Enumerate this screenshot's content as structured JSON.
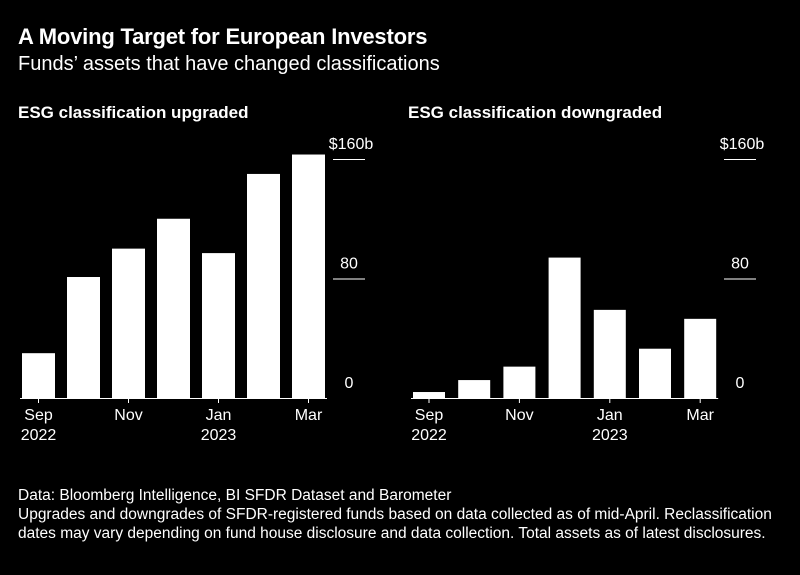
{
  "header": {
    "title": "A Moving Target for European Investors",
    "subtitle": "Funds’ assets that have changed classifications"
  },
  "colors": {
    "background": "#000000",
    "bar": "#ffffff",
    "text": "#ffffff"
  },
  "chart_data": [
    {
      "type": "bar",
      "title": "ESG classification upgraded",
      "categories": [
        "Sep 2022",
        "Oct 2022",
        "Nov 2022",
        "Dec 2022",
        "Jan 2023",
        "Feb 2023",
        "Mar 2023"
      ],
      "values": [
        30,
        81,
        100,
        120,
        97,
        150,
        163
      ],
      "ylim": [
        0,
        160
      ],
      "yticks": [
        {
          "value": 160,
          "label": "$160b"
        },
        {
          "value": 80,
          "label": "80"
        },
        {
          "value": 0,
          "label": "0"
        }
      ],
      "xticks": [
        {
          "index": 0,
          "label": "Sep",
          "sublabel": "2022"
        },
        {
          "index": 2,
          "label": "Nov",
          "sublabel": ""
        },
        {
          "index": 4,
          "label": "Jan",
          "sublabel": "2023"
        },
        {
          "index": 6,
          "label": "Mar",
          "sublabel": ""
        }
      ],
      "axis_position": "right",
      "grid": false
    },
    {
      "type": "bar",
      "title": "ESG classification downgraded",
      "categories": [
        "Sep 2022",
        "Oct 2022",
        "Nov 2022",
        "Dec 2022",
        "Jan 2023",
        "Feb 2023",
        "Mar 2023"
      ],
      "values": [
        4,
        12,
        21,
        94,
        59,
        33,
        53
      ],
      "ylim": [
        0,
        160
      ],
      "yticks": [
        {
          "value": 160,
          "label": "$160b"
        },
        {
          "value": 80,
          "label": "80"
        },
        {
          "value": 0,
          "label": "0"
        }
      ],
      "xticks": [
        {
          "index": 0,
          "label": "Sep",
          "sublabel": "2022"
        },
        {
          "index": 2,
          "label": "Nov",
          "sublabel": ""
        },
        {
          "index": 4,
          "label": "Jan",
          "sublabel": "2023"
        },
        {
          "index": 6,
          "label": "Mar",
          "sublabel": ""
        }
      ],
      "axis_position": "right",
      "grid": false
    }
  ],
  "footer": {
    "source": "Data: Bloomberg Intelligence, BI SFDR Dataset and Barometer",
    "note": "Upgrades and downgrades of SFDR-registered funds based on data collected as of mid-April. Reclassification dates may vary depending on fund house disclosure and data collection. Total assets as of latest disclosures."
  }
}
